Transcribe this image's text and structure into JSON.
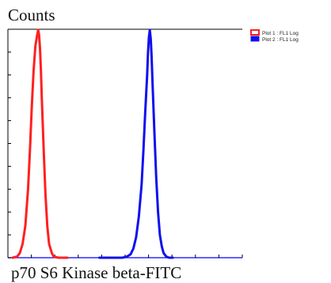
{
  "chart_data": {
    "type": "line",
    "ylabel": "Counts",
    "xlabel": "p70 S6 Kinase beta-FITC",
    "xscale": "log",
    "grid": false,
    "legend_position": "top-right",
    "x_ticks_visible_labels": false,
    "y_ticks_visible_labels": false,
    "x_range": [
      0,
      100
    ],
    "y_range": [
      0,
      100
    ],
    "series": [
      {
        "name": "Plot 1 : FL1 Log",
        "color": "#ff2020",
        "x": [
          5,
          10,
          13,
          16,
          19,
          22,
          24,
          26,
          28,
          30,
          32,
          33,
          34,
          35,
          36,
          37,
          39,
          41,
          43,
          45,
          48,
          50,
          55,
          60,
          65
        ],
        "y": [
          0,
          0.5,
          2,
          6,
          14,
          30,
          47,
          66,
          82,
          93,
          98,
          100,
          98,
          92,
          83,
          70,
          48,
          28,
          14,
          6,
          2,
          0.5,
          0,
          0,
          0
        ]
      },
      {
        "name": "Plot 2 : FL1 Log",
        "color": "#1010ee",
        "x": [
          100,
          125,
          130,
          134,
          137,
          140,
          143,
          146,
          148,
          150,
          152,
          153,
          154,
          155,
          156,
          157,
          158,
          160,
          162,
          164,
          166,
          168,
          170,
          173,
          176,
          180
        ],
        "y": [
          0,
          0,
          0.5,
          1.5,
          4,
          9,
          18,
          32,
          47,
          64,
          80,
          90,
          97,
          100,
          96,
          88,
          76,
          55,
          35,
          20,
          10,
          5,
          2,
          0.5,
          0,
          0
        ]
      }
    ]
  }
}
